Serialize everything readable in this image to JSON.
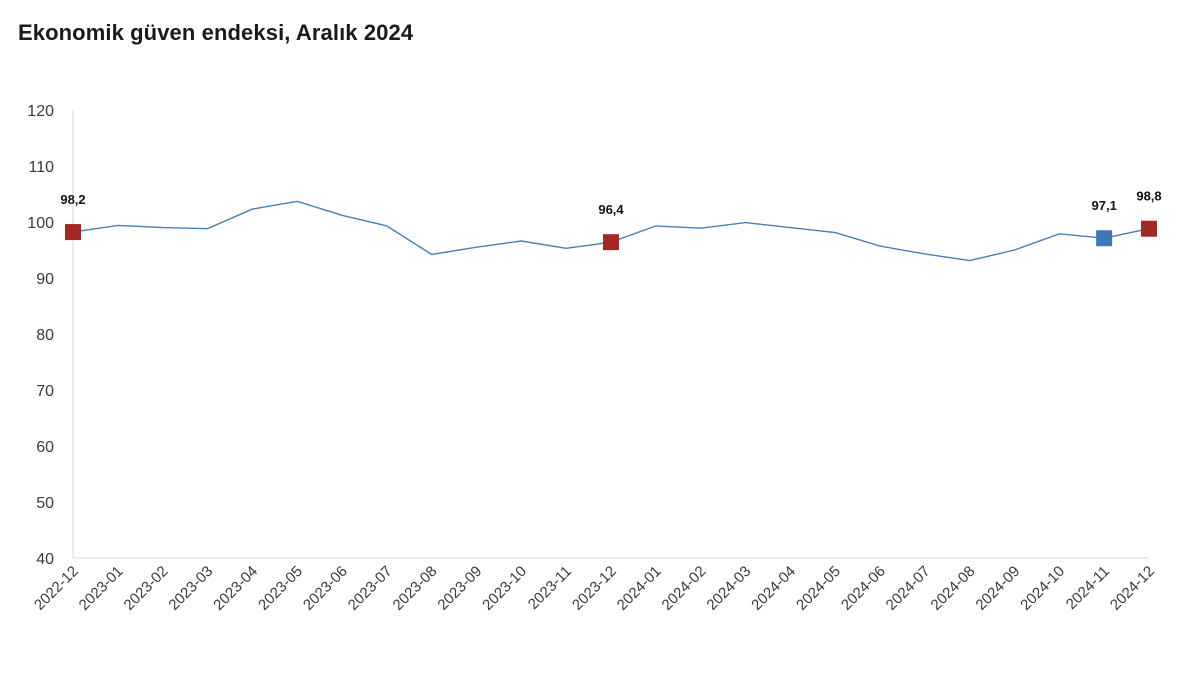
{
  "chart_data": {
    "type": "line",
    "title": "Ekonomik güven endeksi, Aralık 2024",
    "xlabel": "",
    "ylabel": "",
    "ylim": [
      40,
      120
    ],
    "yticks": [
      "40",
      "50",
      "60",
      "70",
      "80",
      "90",
      "100",
      "110",
      "120"
    ],
    "grid": false,
    "categories": [
      "2022-12",
      "2023-01",
      "2023-02",
      "2023-03",
      "2023-04",
      "2023-05",
      "2023-06",
      "2023-07",
      "2023-08",
      "2023-09",
      "2023-10",
      "2023-11",
      "2023-12",
      "2024-01",
      "2024-02",
      "2024-03",
      "2024-04",
      "2024-05",
      "2024-06",
      "2024-07",
      "2024-08",
      "2024-09",
      "2024-10",
      "2024-11",
      "2024-12"
    ],
    "series": [
      {
        "color": "#4a7fb5",
        "values": [
          98.2,
          99.4,
          99.0,
          98.8,
          102.3,
          103.7,
          101.2,
          99.3,
          94.2,
          95.5,
          96.6,
          95.3,
          96.4,
          99.3,
          98.9,
          99.9,
          99.0,
          98.1,
          95.7,
          94.3,
          93.1,
          95.0,
          97.9,
          97.1,
          98.8
        ]
      }
    ],
    "highlighted_points": [
      {
        "category": "2022-12",
        "value": 98.2,
        "label": "98,2",
        "color": "#a32a24"
      },
      {
        "category": "2023-12",
        "value": 96.4,
        "label": "96,4",
        "color": "#a32a24"
      },
      {
        "category": "2024-11",
        "value": 97.1,
        "label": "97,1",
        "color": "#3f78b6"
      },
      {
        "category": "2024-12",
        "value": 98.8,
        "label": "98,8",
        "color": "#a32a24"
      }
    ],
    "colors": {
      "line": "#4a7fb5",
      "axis": "#d9d9d9",
      "text": "#3a3a3a"
    }
  }
}
